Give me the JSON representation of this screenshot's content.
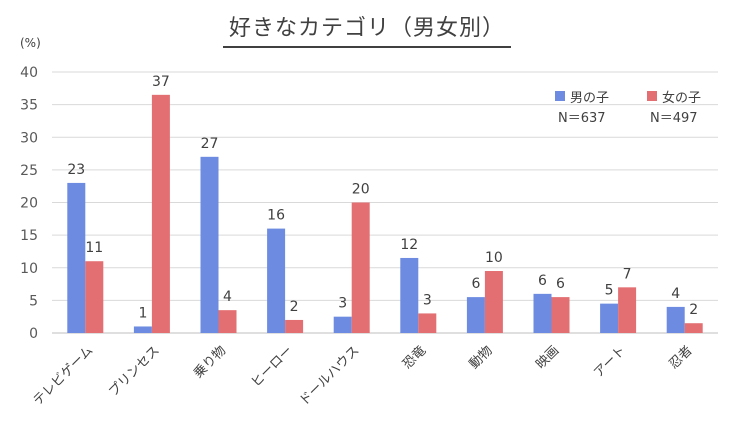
{
  "unit_label": "(%)",
  "chart_data": {
    "type": "bar",
    "title": "好きなカテゴリ（男女別）",
    "categories": [
      "テレビゲーム",
      "プリンセス",
      "乗り物",
      "ヒーロー",
      "ドールハウス",
      "恐竜",
      "動物",
      "映画",
      "アート",
      "忍者"
    ],
    "series": [
      {
        "name": "男の子",
        "n_label": "N＝637",
        "color": "#6d8be0",
        "values": [
          23,
          1,
          27,
          16,
          2.5,
          11.5,
          5.5,
          6,
          4.5,
          4
        ],
        "labels": [
          "23",
          "1",
          "27",
          "16",
          "3",
          "12",
          "6",
          "6",
          "5",
          "4"
        ]
      },
      {
        "name": "女の子",
        "n_label": "N＝497",
        "color": "#e36f72",
        "values": [
          11,
          36.5,
          3.5,
          2,
          20,
          3,
          9.5,
          5.5,
          7,
          1.5
        ],
        "labels": [
          "11",
          "37",
          "4",
          "2",
          "20",
          "3",
          "10",
          "6",
          "7",
          "2"
        ]
      }
    ],
    "ylim": [
      0,
      40
    ],
    "yticks": [
      0,
      5,
      10,
      15,
      20,
      25,
      30,
      35,
      40
    ],
    "grid": true,
    "legend_position": "top-right"
  }
}
